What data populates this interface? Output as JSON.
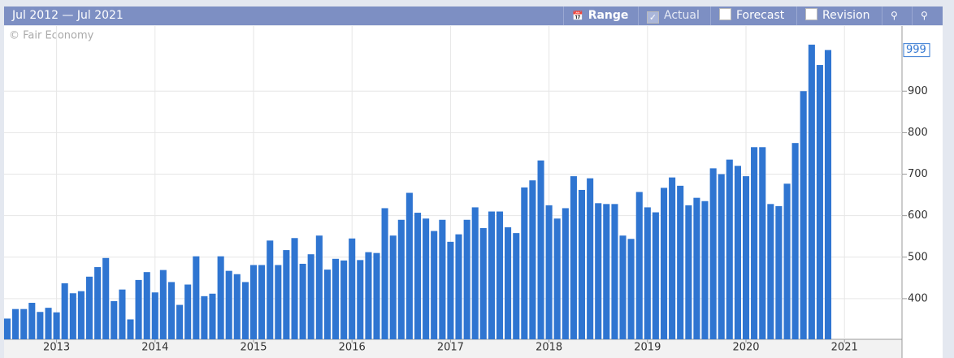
{
  "header": {
    "range_text": "Jul 2012 — Jul 2021",
    "buttons": [
      {
        "label": "Range"
      },
      {
        "label": "Actual",
        "checked": true
      },
      {
        "label": "Forecast",
        "checked": false
      },
      {
        "label": "Revision",
        "checked": false
      }
    ]
  },
  "chart_data": {
    "type": "bar",
    "watermark": "© Fair Economy",
    "color": "#2f75d1",
    "x": [
      2012.5,
      2012.583,
      2012.667,
      2012.75,
      2012.833,
      2012.917,
      2013,
      2013.083,
      2013.167,
      2013.25,
      2013.333,
      2013.417,
      2013.5,
      2013.583,
      2013.667,
      2013.75,
      2013.833,
      2013.917,
      2014,
      2014.083,
      2014.167,
      2014.25,
      2014.333,
      2014.417,
      2014.5,
      2014.583,
      2014.667,
      2014.75,
      2014.833,
      2014.917,
      2015,
      2015.083,
      2015.167,
      2015.25,
      2015.333,
      2015.417,
      2015.5,
      2015.583,
      2015.667,
      2015.75,
      2015.833,
      2015.917,
      2016,
      2016.083,
      2016.167,
      2016.25,
      2016.333,
      2016.417,
      2016.5,
      2016.583,
      2016.667,
      2016.75,
      2016.833,
      2016.917,
      2017,
      2017.083,
      2017.167,
      2017.25,
      2017.333,
      2017.417,
      2017.5,
      2017.583,
      2017.667,
      2017.75,
      2017.833,
      2017.917,
      2018,
      2018.083,
      2018.167,
      2018.25,
      2018.333,
      2018.417,
      2018.5,
      2018.583,
      2018.667,
      2018.75,
      2018.833,
      2018.917,
      2019,
      2019.083,
      2019.167,
      2019.25,
      2019.333,
      2019.417,
      2019.5,
      2019.583,
      2019.667,
      2019.75,
      2019.833,
      2019.917,
      2020,
      2020.083,
      2020.167,
      2020.25,
      2020.333,
      2020.417,
      2020.5,
      2020.583,
      2020.667,
      2020.75,
      2020.833
    ],
    "values": [
      352,
      375,
      375,
      390,
      368,
      378,
      367,
      437,
      413,
      418,
      453,
      476,
      498,
      394,
      422,
      350,
      445,
      464,
      415,
      469,
      440,
      385,
      434,
      502,
      406,
      412,
      502,
      467,
      459,
      440,
      481,
      481,
      540,
      481,
      517,
      546,
      484,
      507,
      552,
      470,
      496,
      492,
      545,
      493,
      512,
      510,
      618,
      552,
      590,
      655,
      607,
      593,
      563,
      590,
      537,
      555,
      590,
      620,
      570,
      610,
      610,
      572,
      558,
      668,
      685,
      733,
      625,
      593,
      618,
      695,
      662,
      690,
      630,
      628,
      628,
      552,
      544,
      657,
      620,
      608,
      667,
      692,
      672,
      625,
      643,
      635,
      714,
      700,
      735,
      720,
      695,
      765,
      765,
      628,
      623,
      677,
      775,
      900,
      1012,
      963,
      999
    ],
    "xlim": [
      2012.467,
      2021.584
    ],
    "xticks": [
      2013,
      2014,
      2015,
      2016,
      2017,
      2018,
      2019,
      2020,
      2021
    ],
    "ylim": [
      302,
      1057
    ],
    "yticks": [
      400,
      500,
      600,
      700,
      800,
      900
    ],
    "grid": true
  }
}
